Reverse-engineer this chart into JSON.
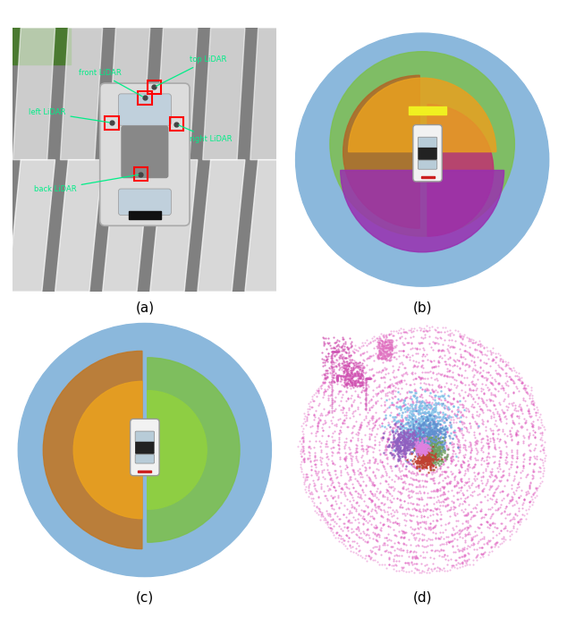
{
  "fig_width": 6.34,
  "fig_height": 6.92,
  "panel_labels": [
    "(a)",
    "(b)",
    "(c)",
    "(d)"
  ],
  "panel_label_fontsize": 11,
  "background_color": "#ffffff",
  "blue_circle_color": "#8BB8DC",
  "panel_b": {
    "top_color": "#7DBF50",
    "front_color": "#E8A020",
    "left_color": "#B06828",
    "back_color": "#9930B0",
    "right_color": "#C03070",
    "yellow_color": "#F0F020"
  },
  "panel_c": {
    "left_color": "#C07828",
    "left_inner_color": "#E8A020",
    "right_color": "#7DBF50",
    "right_inner_color": "#90D040"
  }
}
